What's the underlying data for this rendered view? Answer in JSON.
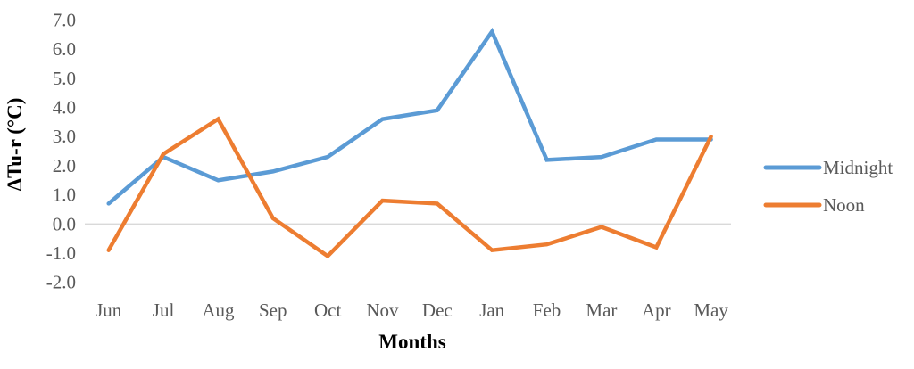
{
  "chart_data": {
    "type": "line",
    "categories": [
      "Jun",
      "Jul",
      "Aug",
      "Sep",
      "Oct",
      "Nov",
      "Dec",
      "Jan",
      "Feb",
      "Mar",
      "Apr",
      "May"
    ],
    "series": [
      {
        "name": "Midnight",
        "color": "#5B9BD5",
        "values": [
          0.7,
          2.3,
          1.5,
          1.8,
          2.3,
          3.6,
          3.9,
          6.6,
          2.2,
          2.3,
          2.9,
          2.9
        ]
      },
      {
        "name": "Noon",
        "color": "#ED7D31",
        "values": [
          -0.9,
          2.4,
          3.6,
          0.2,
          -1.1,
          0.8,
          0.7,
          -0.9,
          -0.7,
          -0.1,
          -0.8,
          3.0
        ]
      }
    ],
    "title": "",
    "xlabel": "Months",
    "ylabel": "ΔTu-r (°C)",
    "ylim": [
      -2.0,
      7.0
    ],
    "y_ticks": [
      7.0,
      6.0,
      5.0,
      4.0,
      3.0,
      2.0,
      1.0,
      0.0,
      -1.0,
      -2.0
    ],
    "y_tick_labels": [
      "7.0",
      "6.0",
      "5.0",
      "4.0",
      "3.0",
      "2.0",
      "1.0",
      "0.0",
      "-1.0",
      "-2.0"
    ],
    "grid": "zero-line-only",
    "legend_position": "right",
    "axis_text_color": "#595959",
    "gridline_color": "#D9D9D9",
    "background_color": "#FFFFFF",
    "line_width": 4.5
  }
}
